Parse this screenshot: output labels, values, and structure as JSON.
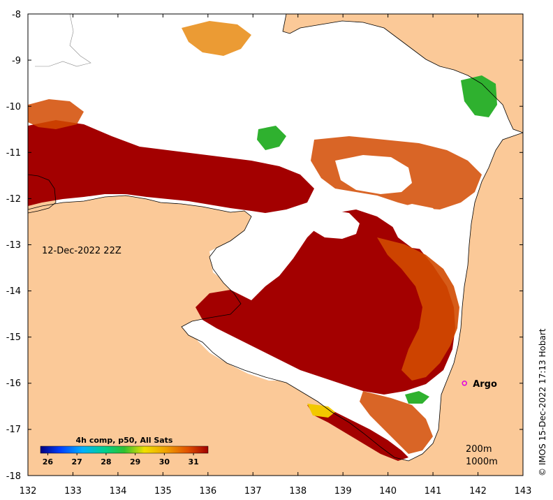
{
  "map": {
    "timestamp_label": "12-Dec-2022 22Z",
    "credit": "© IMOS 15-Dec-2022 17:13 Hobart",
    "lon_ticks": [
      "132",
      "133",
      "134",
      "135",
      "136",
      "137",
      "138",
      "139",
      "140",
      "141",
      "142",
      "143"
    ],
    "lat_ticks": [
      "-8",
      "-9",
      "-10",
      "-11",
      "-12",
      "-13",
      "-14",
      "-15",
      "-16",
      "-17",
      "-18"
    ],
    "lon_range": [
      132,
      143
    ],
    "lat_range": [
      -18,
      -8
    ],
    "colors": {
      "land": "#fbc998",
      "cloud": "#ffffff",
      "sst_hot": "#a30000",
      "sst_warm": "#d24a00",
      "sst_mid": "#e88a10",
      "sst_cool": "#f2c800",
      "sst_green": "#2fb12f",
      "argo_marker": "#e000e0"
    }
  },
  "colorbar": {
    "title": "4h comp, p50, All Sats",
    "ticks": [
      "26",
      "27",
      "28",
      "29",
      "30",
      "31"
    ],
    "range": [
      25.75,
      31.5
    ]
  },
  "argo": {
    "label": "Argo",
    "lon": 141.7,
    "lat": -16.0
  },
  "isobaths": {
    "label_200": "200m",
    "label_1000": "1000m"
  }
}
